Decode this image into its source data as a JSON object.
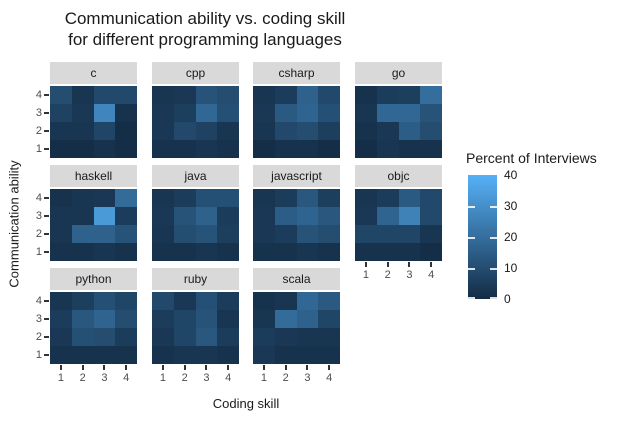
{
  "title": {
    "line1": "Communication ability vs. coding skill",
    "line2": "for different programming languages"
  },
  "axes": {
    "x_label": "Coding skill",
    "y_label": "Communication ability",
    "x_ticks": [
      "1",
      "2",
      "3",
      "4"
    ],
    "y_ticks_top_to_bottom": [
      "4",
      "3",
      "2",
      "1"
    ]
  },
  "legend": {
    "title": "Percent of Interviews",
    "tick_values": [
      40,
      30,
      20,
      10,
      0
    ],
    "min": 0,
    "max": 40,
    "low_color": "#132B43",
    "high_color": "#56B1F7"
  },
  "chart_data": {
    "type": "heatmap",
    "title": "Communication ability vs. coding skill for different programming languages",
    "xlabel": "Coding skill",
    "ylabel": "Communication ability",
    "value_label": "Percent of Interviews",
    "x": [
      1,
      2,
      3,
      4
    ],
    "y_rows_top_to_bottom": [
      4,
      3,
      2,
      1
    ],
    "scale": {
      "min": 0,
      "max": 40,
      "low_color": "#132B43",
      "high_color": "#56B1F7"
    },
    "legend_position": "right",
    "facets": [
      {
        "name": "c",
        "values": [
          [
            10,
            3,
            9,
            9
          ],
          [
            7,
            4,
            27,
            2
          ],
          [
            3,
            3,
            8,
            1
          ],
          [
            1,
            1,
            2,
            1
          ]
        ]
      },
      {
        "name": "cpp",
        "values": [
          [
            3,
            4,
            12,
            10
          ],
          [
            4,
            6,
            18,
            11
          ],
          [
            4,
            9,
            7,
            3
          ],
          [
            2,
            2,
            3,
            2
          ]
        ]
      },
      {
        "name": "csharp",
        "values": [
          [
            3,
            5,
            16,
            9
          ],
          [
            4,
            14,
            17,
            11
          ],
          [
            3,
            9,
            10,
            6
          ],
          [
            1,
            2,
            2,
            1
          ]
        ]
      },
      {
        "name": "go",
        "values": [
          [
            2,
            5,
            6,
            20
          ],
          [
            3,
            18,
            18,
            12
          ],
          [
            2,
            4,
            15,
            10
          ],
          [
            1,
            3,
            2,
            2
          ]
        ]
      },
      {
        "name": "haskell",
        "values": [
          [
            2,
            3,
            4,
            19
          ],
          [
            3,
            3,
            33,
            5
          ],
          [
            3,
            16,
            16,
            12
          ],
          [
            2,
            2,
            3,
            2
          ]
        ]
      },
      {
        "name": "java",
        "values": [
          [
            3,
            5,
            11,
            11
          ],
          [
            4,
            12,
            16,
            5
          ],
          [
            3,
            10,
            12,
            6
          ],
          [
            2,
            2,
            3,
            2
          ]
        ]
      },
      {
        "name": "javascript",
        "values": [
          [
            3,
            5,
            13,
            6
          ],
          [
            4,
            15,
            17,
            13
          ],
          [
            4,
            5,
            12,
            10
          ],
          [
            2,
            2,
            3,
            2
          ]
        ]
      },
      {
        "name": "objc",
        "values": [
          [
            3,
            5,
            14,
            9
          ],
          [
            4,
            17,
            26,
            9
          ],
          [
            8,
            8,
            8,
            3
          ],
          [
            2,
            2,
            2,
            1
          ]
        ]
      },
      {
        "name": "python",
        "values": [
          [
            3,
            6,
            11,
            8
          ],
          [
            5,
            13,
            17,
            10
          ],
          [
            4,
            11,
            10,
            5
          ],
          [
            2,
            2,
            2,
            2
          ]
        ]
      },
      {
        "name": "ruby",
        "values": [
          [
            9,
            4,
            11,
            5
          ],
          [
            5,
            8,
            12,
            3
          ],
          [
            4,
            8,
            13,
            5
          ],
          [
            2,
            3,
            3,
            2
          ]
        ]
      },
      {
        "name": "scala",
        "values": [
          [
            2,
            3,
            18,
            14
          ],
          [
            3,
            19,
            16,
            8
          ],
          [
            5,
            4,
            3,
            3
          ],
          [
            4,
            2,
            2,
            2
          ]
        ]
      }
    ]
  }
}
